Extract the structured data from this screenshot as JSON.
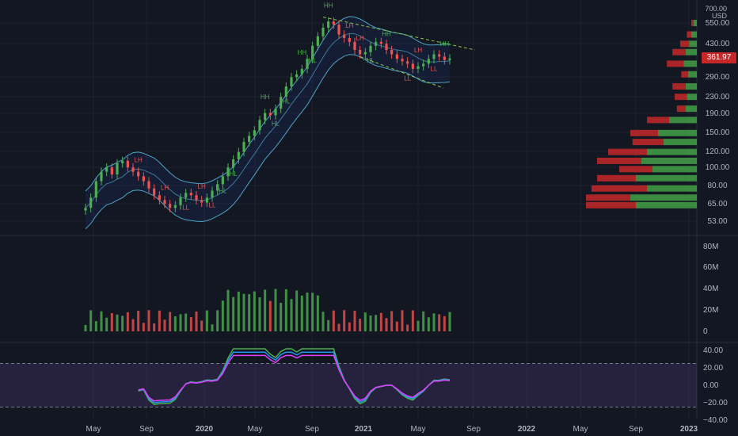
{
  "chart_data": {
    "type": "candlestick",
    "currency": "USD",
    "last_price": "361.97",
    "price_axis": {
      "scale": "log",
      "ticks": [
        "700.00",
        "550.00",
        "430.00",
        "361.97",
        "290.00",
        "230.00",
        "190.00",
        "150.00",
        "120.00",
        "100.00",
        "80.00",
        "65.00",
        "53.00"
      ]
    },
    "volume_axis": {
      "ticks": [
        "80M",
        "60M",
        "40M",
        "20M",
        "0"
      ]
    },
    "oscillator_axis": {
      "ticks": [
        "40.00",
        "20.00",
        "0.00",
        "−20.00",
        "−40.00"
      ],
      "band": [
        25,
        -25
      ]
    },
    "time_axis": {
      "ticks": [
        "May",
        "Sep",
        "2020",
        "May",
        "Sep",
        "2021",
        "May",
        "Sep",
        "2022",
        "May",
        "Sep",
        "2023"
      ]
    },
    "price_series": {
      "close": [
        62,
        70,
        85,
        95,
        100,
        92,
        105,
        108,
        100,
        95,
        90,
        85,
        78,
        72,
        68,
        65,
        62,
        64,
        70,
        74,
        72,
        68,
        66,
        70,
        76,
        82,
        90,
        100,
        110,
        120,
        135,
        145,
        155,
        175,
        190,
        185,
        200,
        230,
        260,
        290,
        300,
        320,
        360,
        420,
        470,
        520,
        560,
        540,
        480,
        460,
        440,
        400,
        380,
        390,
        420,
        440,
        430,
        400,
        380,
        360,
        350,
        340,
        320,
        330,
        340,
        360,
        380,
        370,
        355,
        361.97
      ],
      "up_color": "#4caf50",
      "down_color": "#ef5350"
    },
    "swing_labels": [
      {
        "text": "LH",
        "index": 10,
        "type": "high"
      },
      {
        "text": "LH",
        "index": 15,
        "type": "high"
      },
      {
        "text": "LL",
        "index": 19,
        "type": "low"
      },
      {
        "text": "LH",
        "index": 22,
        "type": "high"
      },
      {
        "text": "LL",
        "index": 24,
        "type": "low"
      },
      {
        "text": "HL",
        "index": 26,
        "type": "low"
      },
      {
        "text": "HL",
        "index": 28,
        "type": "low"
      },
      {
        "text": "HH",
        "index": 34,
        "type": "high"
      },
      {
        "text": "HL",
        "index": 36,
        "type": "low"
      },
      {
        "text": "HL",
        "index": 38,
        "type": "low"
      },
      {
        "text": "HH",
        "index": 41,
        "type": "high"
      },
      {
        "text": "HL",
        "index": 43,
        "type": "low"
      },
      {
        "text": "HH",
        "index": 46,
        "type": "high"
      },
      {
        "text": "LH",
        "index": 50,
        "type": "high"
      },
      {
        "text": "LH",
        "index": 52,
        "type": "high"
      },
      {
        "text": "HL",
        "index": 54,
        "type": "low"
      },
      {
        "text": "HH",
        "index": 57,
        "type": "high"
      },
      {
        "text": "LL",
        "index": 61,
        "type": "low"
      },
      {
        "text": "LH",
        "index": 63,
        "type": "high"
      },
      {
        "text": "LL",
        "index": 66,
        "type": "low"
      },
      {
        "text": "HH",
        "index": 68,
        "type": "high"
      }
    ],
    "volume_profile": {
      "rows": [
        {
          "price": 550,
          "buy": 0.03,
          "sell": 0.02
        },
        {
          "price": 480,
          "buy": 0.05,
          "sell": 0.04
        },
        {
          "price": 430,
          "buy": 0.07,
          "sell": 0.08
        },
        {
          "price": 390,
          "buy": 0.1,
          "sell": 0.12
        },
        {
          "price": 340,
          "buy": 0.12,
          "sell": 0.15
        },
        {
          "price": 300,
          "buy": 0.08,
          "sell": 0.06
        },
        {
          "price": 260,
          "buy": 0.1,
          "sell": 0.12
        },
        {
          "price": 230,
          "buy": 0.09,
          "sell": 0.11
        },
        {
          "price": 200,
          "buy": 0.1,
          "sell": 0.08
        },
        {
          "price": 175,
          "buy": 0.25,
          "sell": 0.2
        },
        {
          "price": 150,
          "buy": 0.35,
          "sell": 0.25
        },
        {
          "price": 135,
          "buy": 0.3,
          "sell": 0.28
        },
        {
          "price": 120,
          "buy": 0.45,
          "sell": 0.35
        },
        {
          "price": 108,
          "buy": 0.5,
          "sell": 0.4
        },
        {
          "price": 98,
          "buy": 0.4,
          "sell": 0.3
        },
        {
          "price": 88,
          "buy": 0.55,
          "sell": 0.35
        },
        {
          "price": 78,
          "buy": 0.45,
          "sell": 0.5
        },
        {
          "price": 70,
          "buy": 0.6,
          "sell": 0.4
        },
        {
          "price": 64,
          "buy": 0.55,
          "sell": 0.45
        }
      ]
    }
  }
}
